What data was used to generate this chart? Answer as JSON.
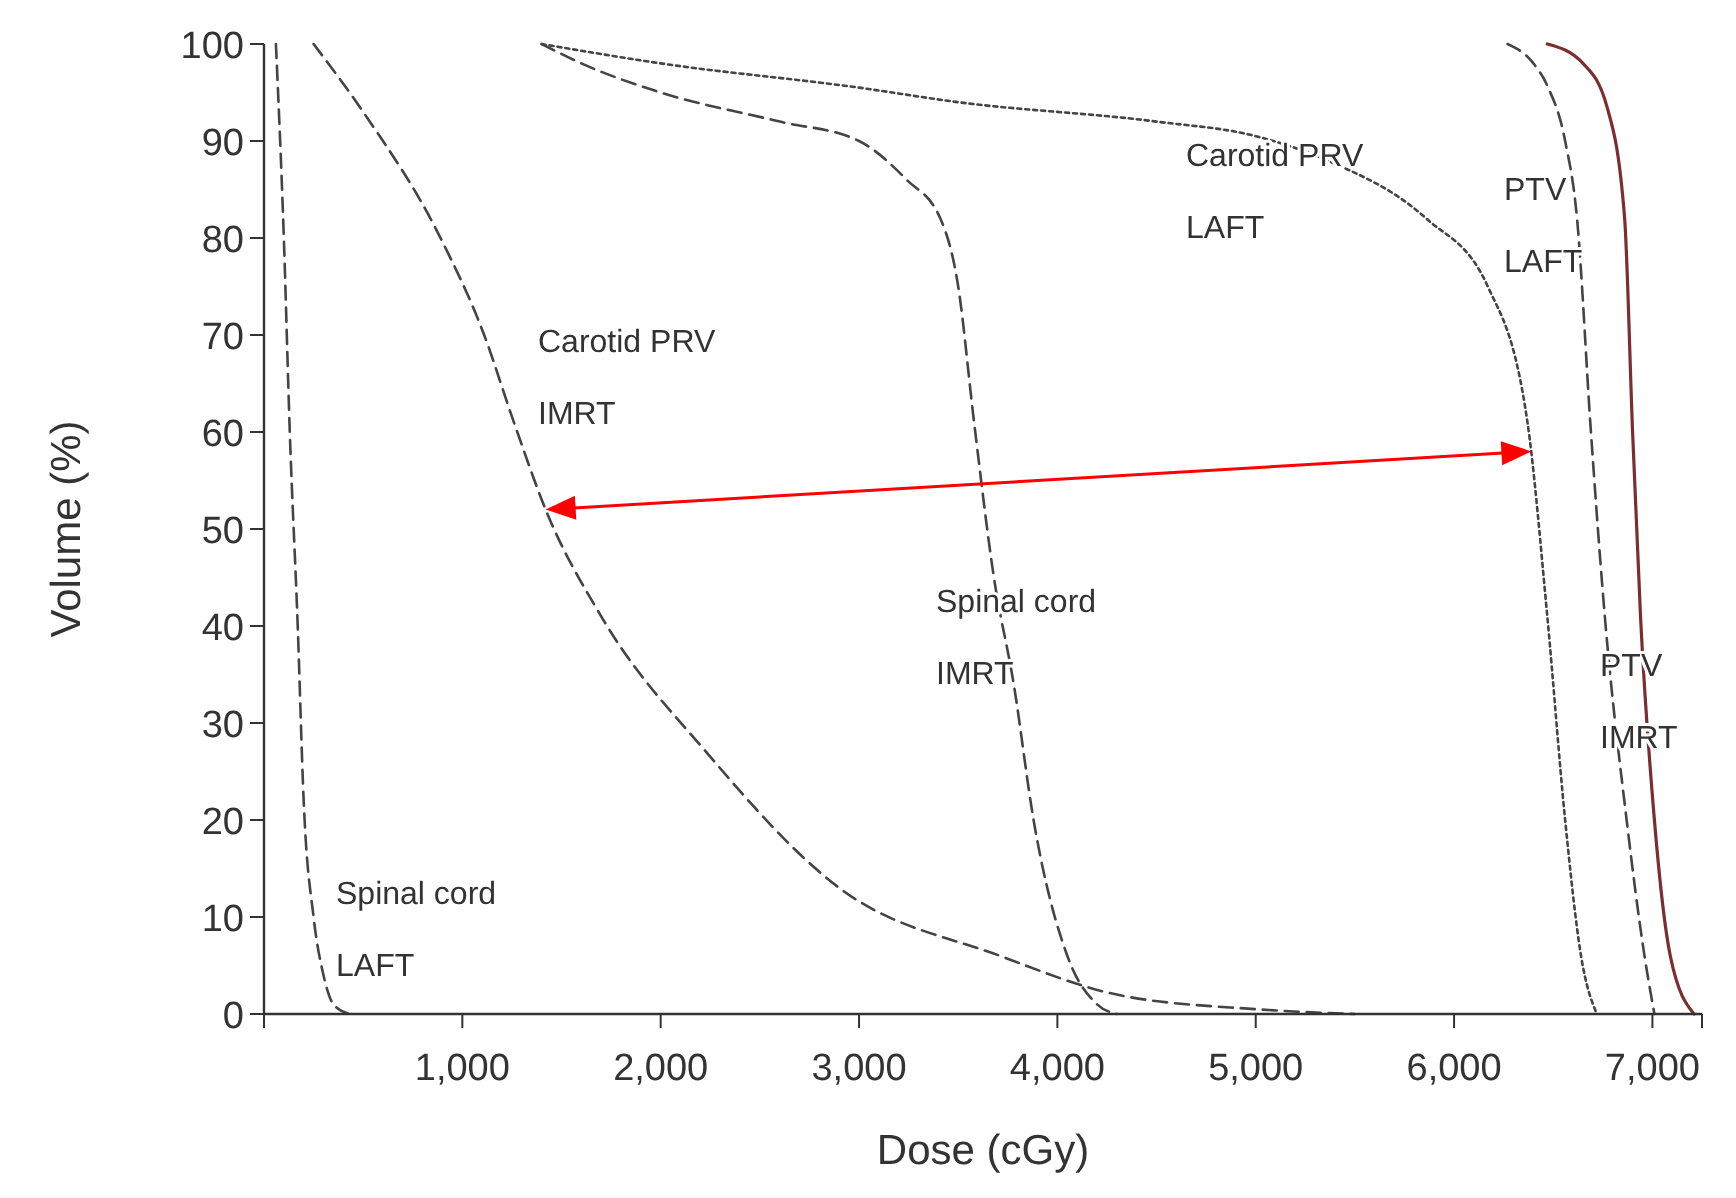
{
  "chart_data": {
    "type": "line",
    "xlabel": "Dose (cGy)",
    "ylabel": "Volume (%)",
    "xlim": [
      0,
      7250
    ],
    "xticks": [
      {
        "value": 0,
        "label": null
      },
      {
        "value": 1000,
        "label": "1,000"
      },
      {
        "value": 2000,
        "label": "2,000"
      },
      {
        "value": 3000,
        "label": "3,000"
      },
      {
        "value": 4000,
        "label": "4,000"
      },
      {
        "value": 5000,
        "label": "5,000"
      },
      {
        "value": 6000,
        "label": "6,000"
      },
      {
        "value": 7000,
        "label": "7,000"
      },
      {
        "value": 7250,
        "label": null
      }
    ],
    "ylim": [
      0,
      100
    ],
    "yticks": [
      0,
      10,
      20,
      30,
      40,
      50,
      60,
      70,
      80,
      90,
      100
    ],
    "grid": false,
    "marker": "none",
    "series": [
      {
        "name": "Spinal cord LAFT",
        "color": "#444444",
        "line_style": "dashed",
        "x": [
          60,
          100,
          130,
          170,
          200,
          250,
          300,
          350,
          430
        ],
        "values": [
          100,
          80,
          60,
          40,
          22,
          10,
          4,
          1,
          0
        ]
      },
      {
        "name": "Carotid PRV IMRT",
        "color": "#444444",
        "line_style": "dashed",
        "x": [
          250,
          500,
          890,
          1110,
          1260,
          1420,
          1700,
          2230,
          2900,
          3710,
          4300,
          5000,
          5500
        ],
        "values": [
          100,
          93,
          80,
          70,
          61,
          52,
          41,
          27,
          13,
          6,
          2,
          0.5,
          0
        ]
      },
      {
        "name": "Spinal cord IMRT",
        "color": "#444444",
        "line_style": "dashed",
        "x": [
          1400,
          1600,
          2000,
          2600,
          3000,
          3240,
          3410,
          3500,
          3580,
          3680,
          3780,
          3880,
          4050,
          4200,
          4300
        ],
        "values": [
          100,
          98,
          95,
          92,
          90,
          86,
          82,
          75,
          61,
          45,
          34,
          20,
          6,
          1,
          0
        ]
      },
      {
        "name": "Carotid PRV LAFT",
        "color": "#444444",
        "line_style": "dotted",
        "x": [
          1400,
          2000,
          3000,
          3500,
          4500,
          5000,
          5360,
          5860,
          6170,
          6370,
          6470,
          6560,
          6640,
          6720
        ],
        "values": [
          100,
          98,
          95.5,
          94,
          92,
          90.5,
          88,
          82,
          75,
          61,
          41,
          20,
          6,
          0
        ]
      },
      {
        "name": "PTV LAFT",
        "color": "#444444",
        "line_style": "dashed",
        "x": [
          6270,
          6400,
          6470,
          6560,
          6620,
          6690,
          6760,
          6870,
          6960,
          7010
        ],
        "values": [
          100,
          98,
          95.7,
          90,
          82,
          60,
          41,
          20,
          6,
          0
        ]
      },
      {
        "name": "PTV IMRT",
        "color": "#7a2e2e",
        "line_style": "solid",
        "x": [
          6470,
          6650,
          6770,
          6860,
          6900,
          6940,
          7010,
          7090,
          7210
        ],
        "values": [
          100,
          98,
          93.6,
          82,
          60,
          41,
          20,
          6,
          0
        ]
      }
    ]
  }
}
